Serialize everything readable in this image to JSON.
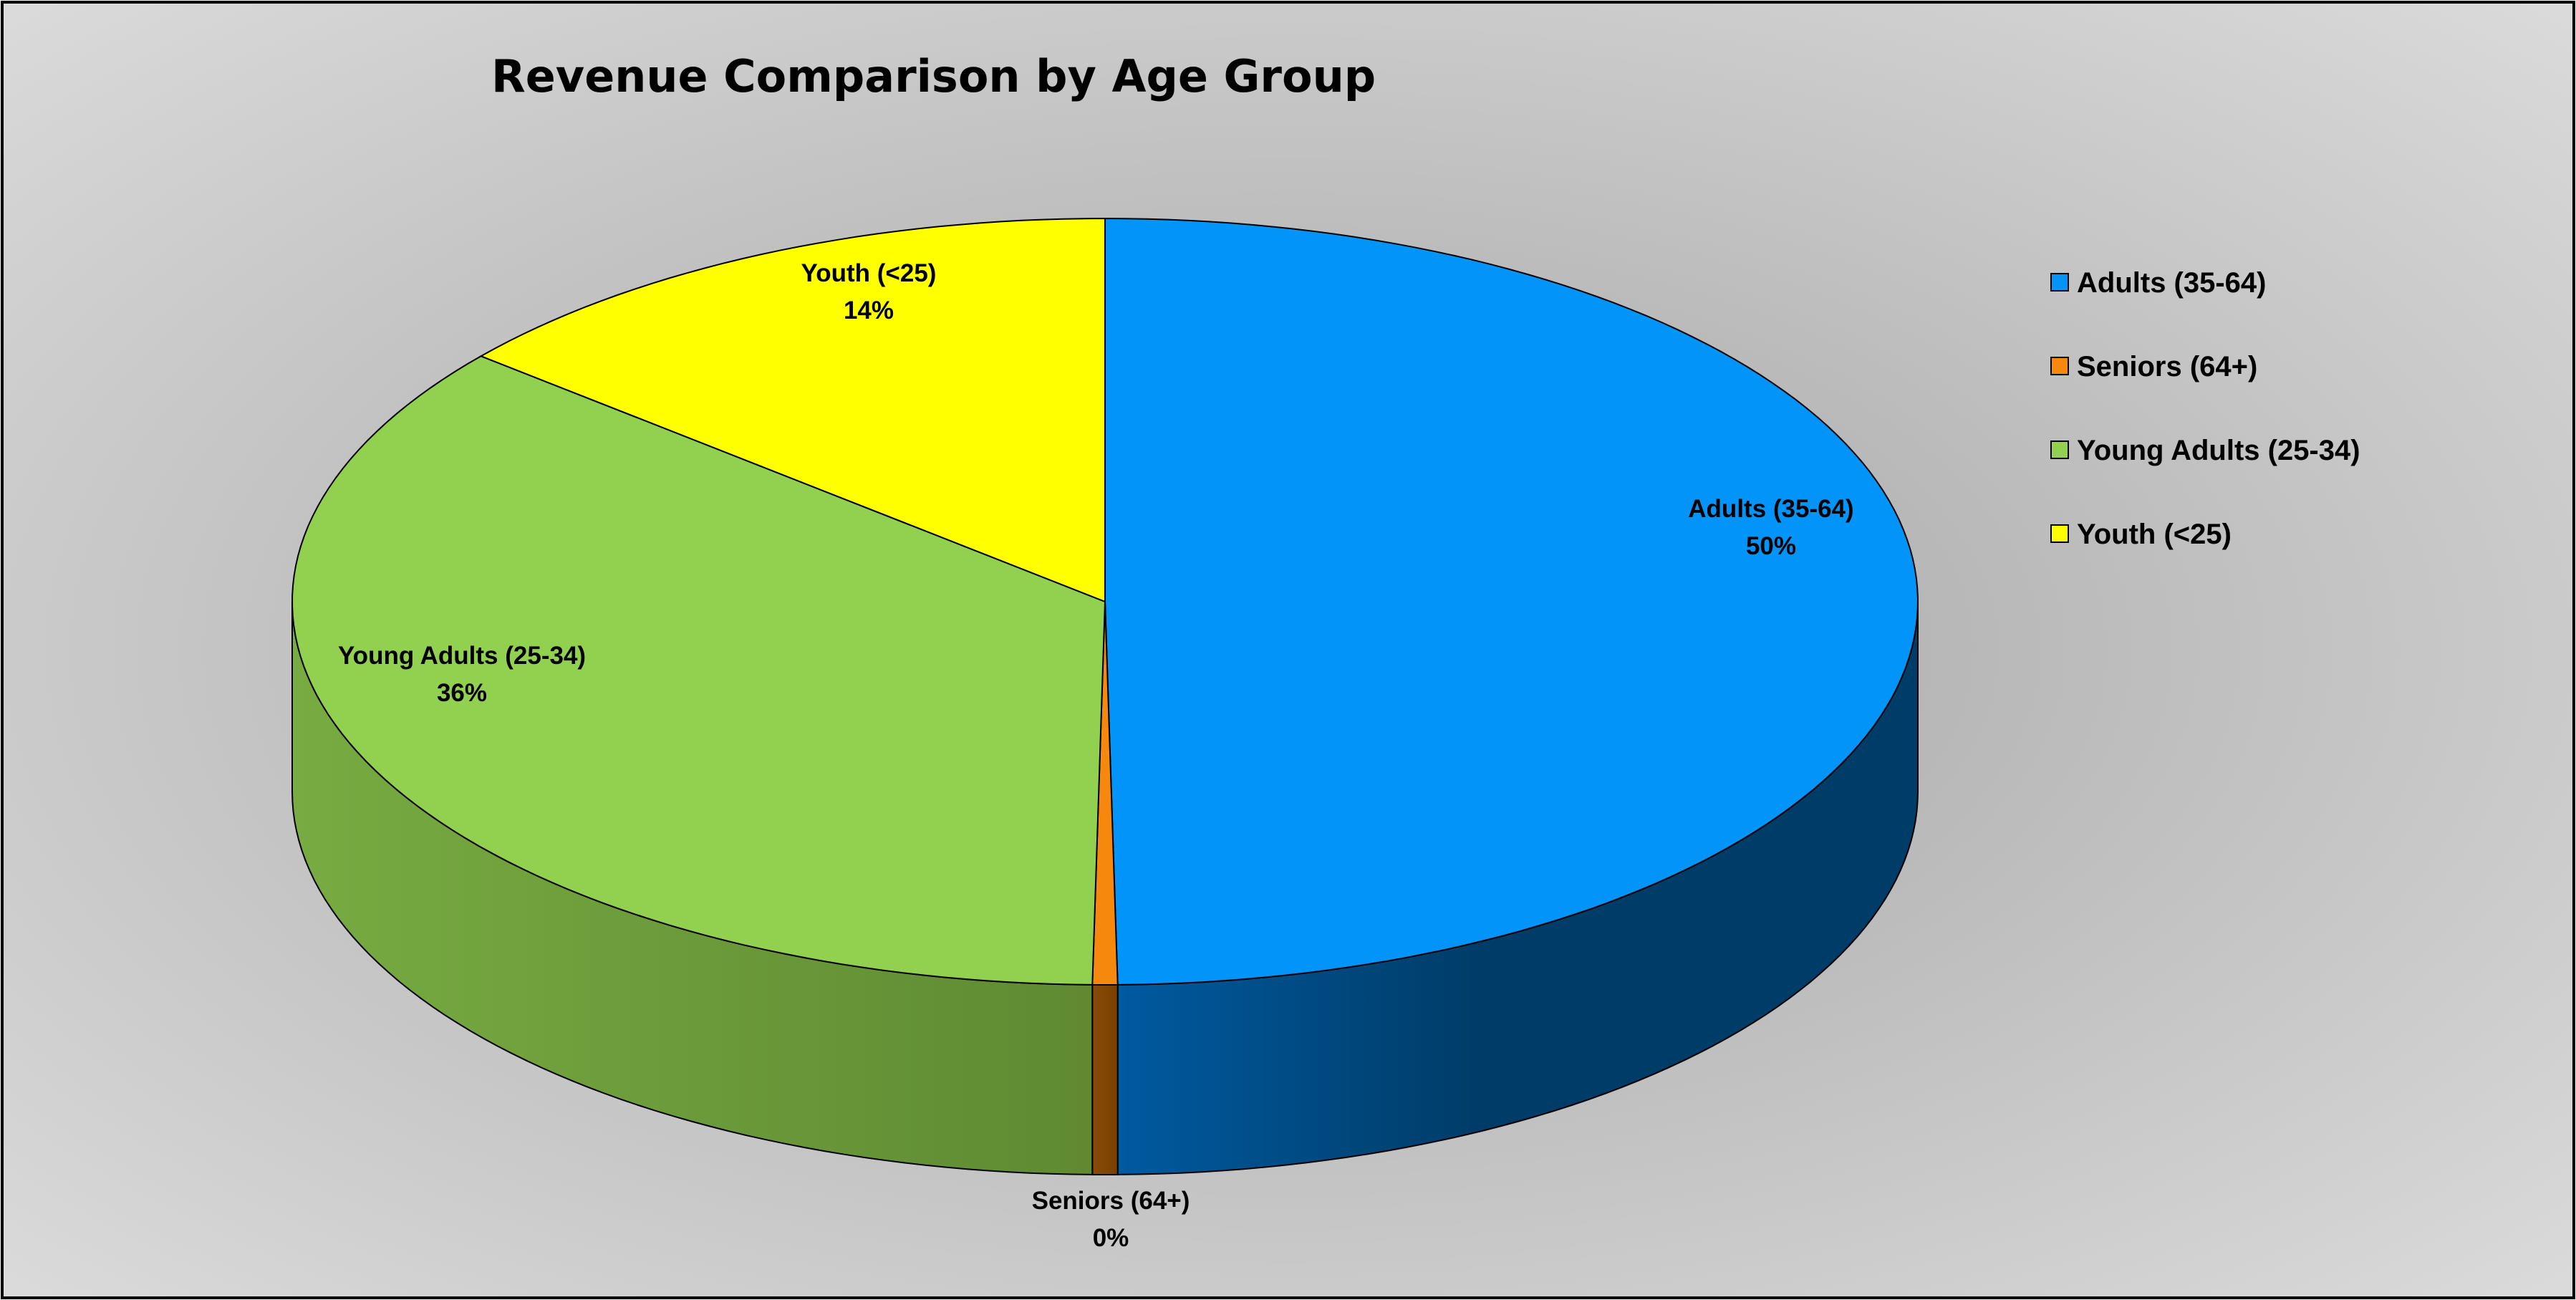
{
  "chart_data": {
    "type": "pie",
    "style": "3d",
    "title": "Revenue Comparison by Age Group",
    "categories": [
      "Adults (35-64)",
      "Seniors (64+)",
      "Young Adults (25-34)",
      "Youth (<25)"
    ],
    "values": [
      50,
      0.5,
      36,
      14
    ],
    "percent_labels": [
      "50%",
      "0%",
      "36%",
      "14%"
    ],
    "colors": [
      "#0294F8",
      "#F7880E",
      "#92D050",
      "#FFFF00"
    ],
    "side_colors": [
      "#003D6B",
      "#7A3F00",
      "#5F8A32",
      "#9A9A00"
    ],
    "legend": {
      "position": "right",
      "items": [
        "Adults (35-64)",
        "Seniors (64+)",
        "Young Adults (25-34)",
        "Youth (<25)"
      ]
    }
  }
}
